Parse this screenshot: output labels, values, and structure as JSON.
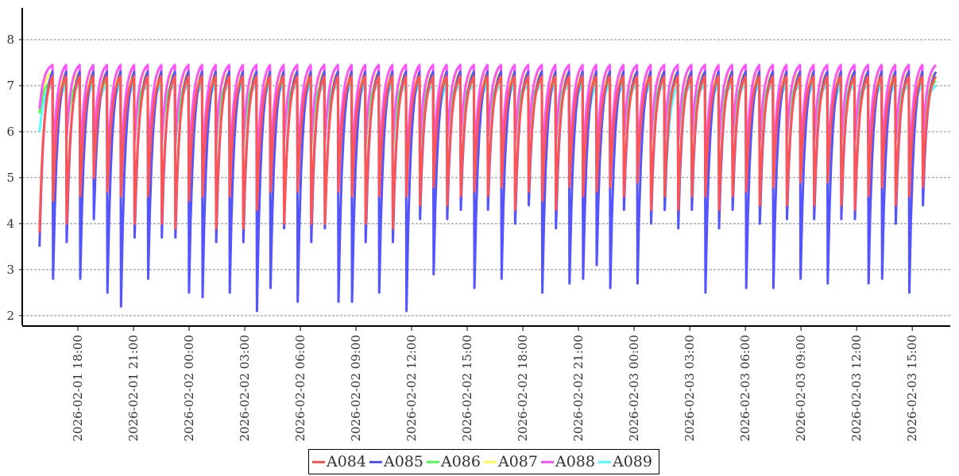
{
  "chart_data": {
    "type": "line",
    "title": "",
    "xlabel": "",
    "ylabel": "",
    "xlim": [
      "2026-02-01 15:00",
      "2026-02-03 17:03"
    ],
    "ylim": [
      1.79,
      8.69
    ],
    "yticks": [
      2,
      3,
      4,
      5,
      6,
      7,
      8
    ],
    "grid": "horizontal dashed",
    "legend_position": "bottom-center",
    "xticks": [
      {
        "t": 3,
        "label": "2026-02-01  18:00"
      },
      {
        "t": 6,
        "label": "2026-02-01  21:00"
      },
      {
        "t": 9,
        "label": "2026-02-02  00:00"
      },
      {
        "t": 12,
        "label": "2026-02-02  03:00"
      },
      {
        "t": 15,
        "label": "2026-02-02  06:00"
      },
      {
        "t": 18,
        "label": "2026-02-02  09:00"
      },
      {
        "t": 21,
        "label": "2026-02-02  12:00"
      },
      {
        "t": 24,
        "label": "2026-02-02  15:00"
      },
      {
        "t": 27,
        "label": "2026-02-02  18:00"
      },
      {
        "t": 30,
        "label": "2026-02-02  21:00"
      },
      {
        "t": 33,
        "label": "2026-02-03  00:00"
      },
      {
        "t": 36,
        "label": "2026-02-03  03:00"
      },
      {
        "t": 39,
        "label": "2026-02-03  06:00"
      },
      {
        "t": 42,
        "label": "2026-02-03  09:00"
      },
      {
        "t": 45,
        "label": "2026-02-03  12:00"
      },
      {
        "t": 48,
        "label": "2026-02-03  15:00"
      }
    ],
    "x_units": "hours since 2026-02-01 15:00",
    "cycle_start_hours": 0.93,
    "cycle_length_hours": 0.733,
    "series": [
      {
        "name": "A089",
        "color": "#55ffff",
        "peak": 7.0,
        "troughs": [
          6.0,
          5.2,
          6.1,
          5.3,
          5.6,
          5.0,
          5.1,
          5.8,
          5.3,
          5.9,
          5.7,
          5.2,
          5.0,
          5.8,
          5.2,
          5.7,
          5.0,
          5.3,
          5.9,
          5.1,
          5.7,
          5.9,
          5.2,
          5.1,
          5.8,
          5.2,
          5.6,
          5.0,
          5.6,
          4.4,
          5.8,
          5.9,
          5.2,
          5.9,
          5.3,
          5.8,
          5.9,
          5.1,
          5.8,
          5.2,
          4.1,
          5.3,
          5.1,
          5.9,
          5.2,
          5.8,
          4.3,
          5.8,
          5.9,
          5.1,
          5.8,
          5.9,
          5.2,
          5.8,
          5.1,
          5.9,
          5.3,
          5.8,
          4.4,
          5.8,
          5.9,
          5.2,
          5.3,
          5.8,
          5.1,
          5.9
        ]
      },
      {
        "name": "A087",
        "color": "#ffff55",
        "peak": 7.3,
        "troughs": [
          6.4,
          5.5,
          6.0,
          5.5,
          5.8,
          5.3,
          5.3,
          5.9,
          5.4,
          5.9,
          5.8,
          5.4,
          5.3,
          5.9,
          5.3,
          5.8,
          5.3,
          5.5,
          5.9,
          5.3,
          5.8,
          5.9,
          5.3,
          5.3,
          5.9,
          5.4,
          5.8,
          5.2,
          5.9,
          5.5,
          5.9,
          6.0,
          5.4,
          6.0,
          5.5,
          5.9,
          6.0,
          5.3,
          5.9,
          5.4,
          5.4,
          5.5,
          5.4,
          6.0,
          5.4,
          5.9,
          6.0,
          5.9,
          6.0,
          5.3,
          5.9,
          6.0,
          5.4,
          5.9,
          5.4,
          6.0,
          5.5,
          5.9,
          5.4,
          5.9,
          5.9,
          5.4,
          5.5,
          5.9,
          5.3,
          6.0
        ]
      },
      {
        "name": "A086",
        "color": "#55ff55",
        "peak": 7.1,
        "troughs": [
          6.4,
          5.2,
          5.9,
          5.3,
          5.6,
          5.1,
          5.1,
          5.8,
          5.2,
          5.8,
          5.7,
          5.1,
          5.1,
          5.7,
          5.1,
          5.7,
          5.0,
          5.2,
          5.8,
          5.1,
          5.7,
          5.8,
          5.1,
          5.1,
          5.7,
          5.1,
          5.7,
          5.0,
          5.8,
          5.3,
          5.8,
          5.9,
          5.2,
          5.9,
          5.3,
          5.8,
          5.9,
          5.1,
          5.8,
          5.2,
          5.2,
          5.3,
          5.2,
          5.9,
          5.2,
          5.8,
          5.9,
          5.8,
          5.9,
          5.1,
          5.8,
          5.9,
          5.2,
          5.8,
          5.2,
          5.9,
          5.3,
          5.8,
          5.2,
          5.8,
          5.8,
          5.2,
          5.3,
          5.8,
          5.1,
          5.9
        ]
      },
      {
        "name": "A088",
        "color": "#ff55ff",
        "peak": 7.45,
        "troughs": [
          6.5,
          5.4,
          5.9,
          5.4,
          5.7,
          5.2,
          5.2,
          5.8,
          5.3,
          5.8,
          5.8,
          5.2,
          5.2,
          5.8,
          5.2,
          5.8,
          5.1,
          5.3,
          5.8,
          5.2,
          5.8,
          5.8,
          5.2,
          5.2,
          5.8,
          5.2,
          5.8,
          5.1,
          5.8,
          5.4,
          5.8,
          5.9,
          5.3,
          5.9,
          5.4,
          5.8,
          5.9,
          5.2,
          5.8,
          5.3,
          5.3,
          5.4,
          5.3,
          5.9,
          5.3,
          5.8,
          5.9,
          5.8,
          5.9,
          5.2,
          5.8,
          5.9,
          5.3,
          5.8,
          5.3,
          5.9,
          5.4,
          5.8,
          5.3,
          5.8,
          5.8,
          5.3,
          5.4,
          5.8,
          5.2,
          5.9
        ]
      },
      {
        "name": "A085",
        "color": "#5555ff",
        "peak": 7.3,
        "troughs": [
          3.5,
          2.8,
          3.6,
          2.8,
          4.1,
          2.5,
          2.2,
          3.7,
          2.8,
          3.7,
          3.7,
          2.5,
          2.4,
          3.6,
          2.5,
          3.6,
          2.1,
          2.6,
          3.9,
          2.3,
          3.6,
          3.9,
          2.3,
          2.3,
          3.6,
          2.5,
          3.6,
          2.1,
          4.1,
          2.9,
          4.1,
          4.3,
          2.6,
          4.3,
          2.8,
          4.0,
          4.4,
          2.5,
          3.9,
          2.7,
          2.8,
          3.1,
          2.6,
          4.3,
          2.7,
          4.0,
          4.3,
          3.9,
          4.3,
          2.5,
          3.9,
          4.3,
          2.6,
          4.0,
          2.6,
          4.1,
          2.8,
          4.1,
          2.7,
          4.1,
          4.1,
          2.7,
          2.8,
          4.0,
          2.5,
          4.4
        ]
      },
      {
        "name": "A084",
        "color": "#ff5555",
        "peak": 7.2,
        "troughs": [
          3.8,
          4.5,
          4.0,
          4.6,
          5.0,
          4.7,
          4.6,
          4.0,
          4.6,
          4.0,
          3.9,
          4.5,
          4.6,
          3.9,
          4.6,
          3.9,
          4.3,
          4.7,
          4.0,
          4.7,
          4.0,
          4.0,
          4.7,
          4.6,
          4.0,
          4.6,
          3.9,
          4.6,
          4.4,
          4.8,
          4.4,
          4.6,
          4.7,
          4.6,
          4.8,
          4.3,
          4.7,
          4.5,
          4.3,
          4.8,
          4.6,
          4.7,
          4.8,
          4.6,
          4.9,
          4.3,
          4.6,
          4.3,
          4.6,
          4.6,
          4.3,
          4.6,
          4.7,
          4.4,
          4.8,
          4.4,
          4.9,
          4.4,
          4.9,
          4.4,
          4.3,
          4.6,
          4.8,
          4.4,
          4.6,
          4.8
        ]
      }
    ],
    "legend": [
      {
        "name": "A084",
        "color": "#ff5555"
      },
      {
        "name": "A085",
        "color": "#5555ff"
      },
      {
        "name": "A086",
        "color": "#55ff55"
      },
      {
        "name": "A087",
        "color": "#ffff55"
      },
      {
        "name": "A088",
        "color": "#ff55ff"
      },
      {
        "name": "A089",
        "color": "#55ffff"
      }
    ]
  }
}
